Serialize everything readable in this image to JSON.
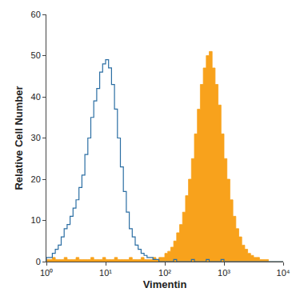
{
  "chart_data": {
    "type": "histogram",
    "xlabel": "Vimentin",
    "ylabel": "Relative Cell Number",
    "log": "x",
    "grid": false,
    "xlim": [
      1,
      10000
    ],
    "xticks": [
      {
        "value": 1,
        "label": "10⁰"
      },
      {
        "value": 10,
        "label": "10¹"
      },
      {
        "value": 100,
        "label": "10²"
      },
      {
        "value": 1000,
        "label": "10³"
      },
      {
        "value": 10000,
        "label": "10⁴"
      }
    ],
    "ylim": [
      0,
      60
    ],
    "yticks": [
      0,
      10,
      20,
      30,
      40,
      50,
      60
    ],
    "bins": [
      1,
      1.122,
      1.259,
      1.413,
      1.585,
      1.778,
      1.995,
      2.239,
      2.512,
      2.818,
      3.162,
      3.548,
      3.981,
      4.467,
      5.012,
      5.623,
      6.31,
      7.079,
      7.943,
      8.913,
      10,
      11.22,
      12.59,
      14.13,
      15.85,
      17.78,
      19.95,
      22.39,
      25.12,
      28.18,
      31.62,
      35.48,
      39.81,
      44.67,
      50.12,
      56.23,
      63.1,
      70.79,
      79.43,
      89.13,
      100,
      112.2,
      125.9,
      141.3,
      158.5,
      177.8,
      199.5,
      223.9,
      251.2,
      281.8,
      316.2,
      354.8,
      398.1,
      446.7,
      501.2,
      562.3,
      631,
      707.9,
      794.3,
      891.3,
      1000,
      1122,
      1259,
      1413,
      1585,
      1778,
      1995,
      2239,
      2512,
      2818,
      3162,
      3548,
      3981,
      4467,
      5012,
      5623,
      6310,
      7079,
      7943,
      8913,
      10000
    ],
    "series": [
      {
        "type": "area",
        "color": "#f8a21c",
        "values": [
          0.5,
          0.5,
          1,
          0.5,
          0.5,
          0.5,
          1,
          0.5,
          0.5,
          0.5,
          1,
          0.5,
          0.5,
          0.5,
          0.5,
          1,
          0.5,
          0.5,
          0.5,
          1,
          0.5,
          0.5,
          0.5,
          1,
          0.5,
          0.5,
          0.5,
          0.5,
          1,
          0.5,
          0.5,
          0.5,
          1,
          0.5,
          0.5,
          0.5,
          1,
          0.5,
          1,
          1,
          2,
          2.5,
          3.5,
          5,
          7,
          9,
          12,
          16,
          20,
          25,
          31,
          37,
          43,
          47,
          50,
          51,
          47,
          43,
          38,
          31,
          25,
          20,
          15,
          11,
          8,
          6,
          4,
          3,
          2,
          1.5,
          1,
          1,
          0.5,
          0.5,
          0.5,
          0,
          0,
          0,
          0,
          0
        ]
      },
      {
        "type": "line",
        "color": "#2b6ea3",
        "values": [
          1,
          1,
          2,
          3,
          4,
          6,
          8,
          9,
          11,
          13,
          15,
          18,
          21,
          26,
          30,
          35,
          39,
          42,
          46,
          48,
          49,
          47,
          43,
          37,
          30,
          23,
          17,
          12,
          8,
          6,
          4,
          3,
          2,
          1.5,
          1,
          1,
          0.5,
          0.5,
          0,
          0,
          0,
          0,
          0,
          0.5,
          0,
          0,
          0,
          0,
          0,
          0.5,
          0,
          0,
          0,
          0,
          0.5,
          0,
          0,
          0,
          0,
          0.5,
          0,
          0,
          0,
          0,
          0,
          0,
          0,
          0,
          0,
          0,
          0,
          0,
          0,
          0,
          0,
          0,
          0,
          0,
          0,
          0
        ]
      }
    ]
  }
}
